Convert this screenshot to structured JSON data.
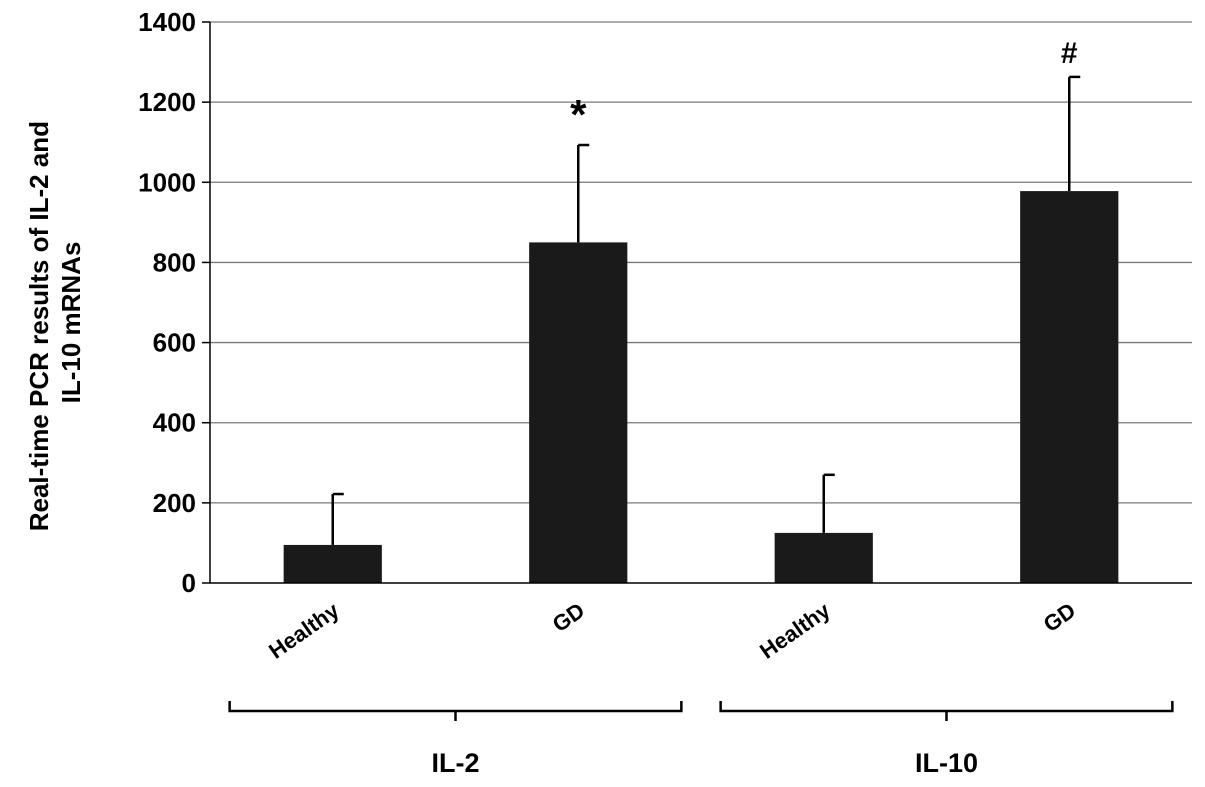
{
  "chart_data": {
    "type": "bar",
    "title": "",
    "ylabel_lines": [
      "Real-time PCR results of IL-2 and",
      "IL-10 mRNAs"
    ],
    "xlabel": "",
    "ylim": [
      0,
      1400
    ],
    "yticks": [
      0,
      200,
      400,
      600,
      800,
      1000,
      1200,
      1400
    ],
    "grid": true,
    "legend": "none",
    "bar_color": "#1a1a1a",
    "groups": [
      {
        "label": "IL-2",
        "bars": [
          {
            "category": "Healthy",
            "value": 95,
            "error": 127,
            "significance": ""
          },
          {
            "category": "GD",
            "value": 850,
            "error": 243,
            "significance": "*"
          }
        ]
      },
      {
        "label": "IL-10",
        "bars": [
          {
            "category": "Healthy",
            "value": 125,
            "error": 145,
            "significance": ""
          },
          {
            "category": "GD",
            "value": 978,
            "error": 285,
            "significance": "#"
          }
        ]
      }
    ]
  }
}
